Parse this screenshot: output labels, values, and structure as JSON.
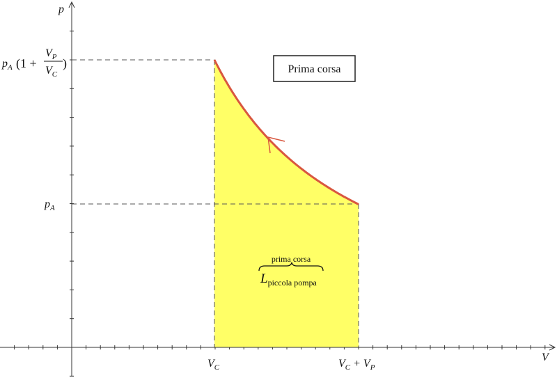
{
  "axes": {
    "y_label": "p",
    "x_label": "V"
  },
  "x_tick_labels": [
    [
      {
        "text": "V",
        "sub": "C"
      }
    ],
    [
      {
        "text": "V",
        "sub": "C"
      },
      {
        "text": " + V",
        "sub": "P"
      }
    ]
  ],
  "y_tick_labels": {
    "low": {
      "text": "p",
      "sub": "A"
    },
    "high": {
      "prefix": {
        "text": "p",
        "sub": "A"
      },
      "open": "(1 +",
      "numerator": {
        "text": "V",
        "sub": "P"
      },
      "denominator": {
        "text": "V",
        "sub": "C"
      },
      "close": ")"
    }
  },
  "box_label": "Prima corsa",
  "work_label": {
    "over": "prima corsa",
    "text": "L",
    "sub": "piccola pompa"
  }
}
